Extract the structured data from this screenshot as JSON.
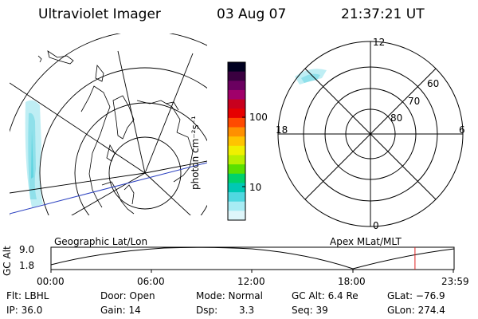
{
  "header": {
    "title": "Ultraviolet Imager",
    "date": "03 Aug 07",
    "time": "21:37:21 UT"
  },
  "colorbar": {
    "unit_label": "photon cm⁻²s⁻¹",
    "ticks": [
      "100",
      "10"
    ],
    "colors": [
      "#000020",
      "#3a0040",
      "#6b0060",
      "#a0006a",
      "#c8001e",
      "#e60000",
      "#ff4a00",
      "#ff9000",
      "#ffc400",
      "#f0f000",
      "#b8ef00",
      "#5ae000",
      "#00d26a",
      "#00c8b4",
      "#50d8e0",
      "#a8ecf4",
      "#dff6fa"
    ]
  },
  "polar_plot": {
    "mlt_labels": {
      "top": "12",
      "left": "18",
      "right": "6",
      "bottom": "0"
    },
    "lat_labels": [
      "60",
      "70",
      "80"
    ]
  },
  "altitude_plot": {
    "axis_label": "GC Alt",
    "y_ticks": [
      "9.0",
      "1.8"
    ],
    "left_title": "Geographic Lat/Lon",
    "right_title": "Apex MLat/MLT",
    "x_ticks": [
      "00:00",
      "06:00",
      "12:00",
      "18:00",
      "23:59"
    ],
    "current_time_fraction": 0.903
  },
  "status": {
    "filter": "Flt: LBHL",
    "door": "Door: Open",
    "mode": "Mode: Normal",
    "gc_alt": "GC Alt: 6.4 Re",
    "glat": "GLat: −76.9",
    "ip": "IP: 36.0",
    "gain": "Gain: 14",
    "dsp_label": "Dsp:",
    "dsp_value": "3.3",
    "seq": "Seq: 39",
    "glon": "GLon: 274.4"
  }
}
